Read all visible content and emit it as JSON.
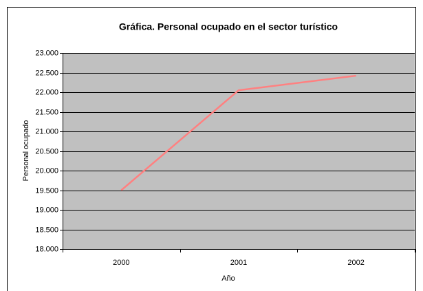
{
  "chart_data": {
    "type": "line",
    "title": "Gráfica. Personal ocupado en el sector turístico",
    "x_label": "Año",
    "y_label": "Personal ocupado",
    "categories": [
      "2000",
      "2001",
      "2002"
    ],
    "series": [
      {
        "name": "Personal ocupado",
        "color": "#ff8080",
        "values": [
          19500,
          22050,
          22420
        ]
      }
    ],
    "ylim": [
      18000,
      23000
    ],
    "yticks": [
      {
        "value": 18000,
        "label": "18.000"
      },
      {
        "value": 18500,
        "label": "18.500"
      },
      {
        "value": 19000,
        "label": "19.000"
      },
      {
        "value": 19500,
        "label": "19.500"
      },
      {
        "value": 20000,
        "label": "20.000"
      },
      {
        "value": 20500,
        "label": "20.500"
      },
      {
        "value": 21000,
        "label": "21.000"
      },
      {
        "value": 21500,
        "label": "21.500"
      },
      {
        "value": 22000,
        "label": "22.000"
      },
      {
        "value": 22500,
        "label": "22.500"
      },
      {
        "value": 23000,
        "label": "23.000"
      }
    ],
    "grid": true,
    "plot_background": "#c0c0c0"
  }
}
